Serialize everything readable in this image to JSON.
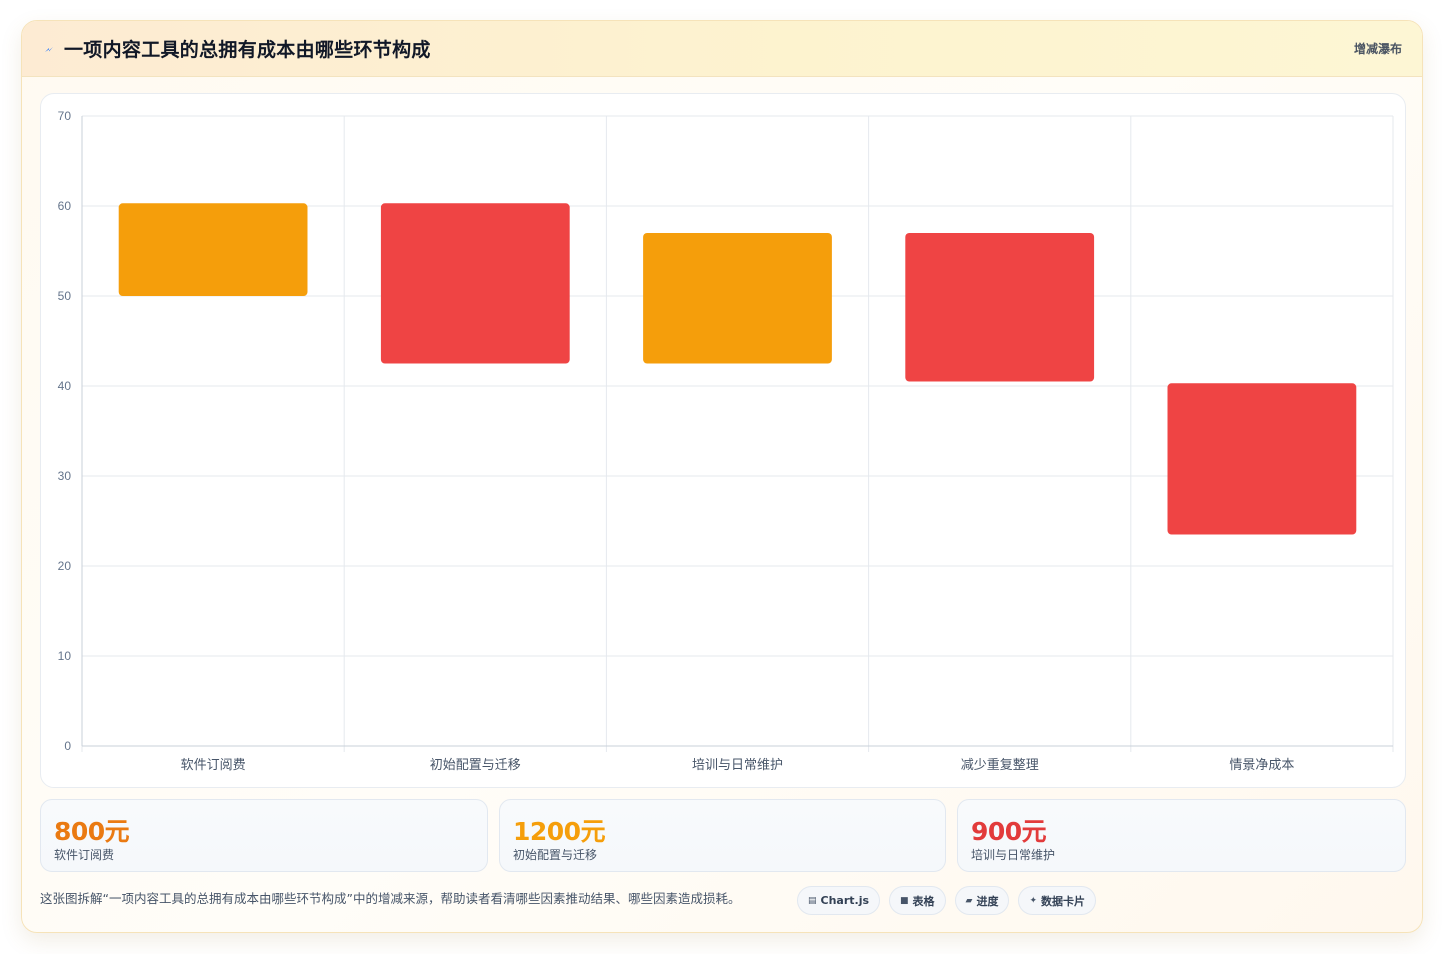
{
  "header": {
    "title": "一项内容工具的总拥有成本由哪些环节构成",
    "type_label": "增减瀑布",
    "icon": "lightning-icon"
  },
  "chart_data": {
    "type": "bar",
    "subtype": "waterfall",
    "categories": [
      "软件订阅费",
      "初始配置与迁移",
      "培训与日常维护",
      "减少重复整理",
      "情景净成本"
    ],
    "series": [
      {
        "ranges": [
          [
            50,
            60.3
          ],
          [
            42.5,
            60.3
          ],
          [
            42.5,
            57
          ],
          [
            40.5,
            57
          ],
          [
            23.5,
            40.3
          ]
        ],
        "colors": [
          "#f59e0b",
          "#ef4444",
          "#f59e0b",
          "#ef4444",
          "#ef4444"
        ]
      }
    ],
    "ylim": [
      0,
      70
    ],
    "yticks": [
      0,
      10,
      20,
      30,
      40,
      50,
      60,
      70
    ],
    "grid": true,
    "legend": "none"
  },
  "stats": [
    {
      "value": "800元",
      "label": "软件订阅费",
      "color": "#ea7a12"
    },
    {
      "value": "1200元",
      "label": "初始配置与迁移",
      "color": "#f59e0b"
    },
    {
      "value": "900元",
      "label": "培训与日常维护",
      "color": "#e23b3b"
    }
  ],
  "footer": {
    "description": "这张图拆解“一项内容工具的总拥有成本由哪些环节构成”中的增减来源，帮助读者看清哪些因素推动结果、哪些因素造成损耗。",
    "chips": [
      {
        "icon": "chart-icon",
        "label": "Chart.js"
      },
      {
        "icon": "table-icon",
        "label": "表格"
      },
      {
        "icon": "progress-icon",
        "label": "进度"
      },
      {
        "icon": "sparkle-icon",
        "label": "数据卡片"
      }
    ]
  },
  "colors": {
    "amber": "#f59e0b",
    "red": "#ef4444",
    "grid": "#e5e9ee",
    "tick": "#64748b"
  }
}
